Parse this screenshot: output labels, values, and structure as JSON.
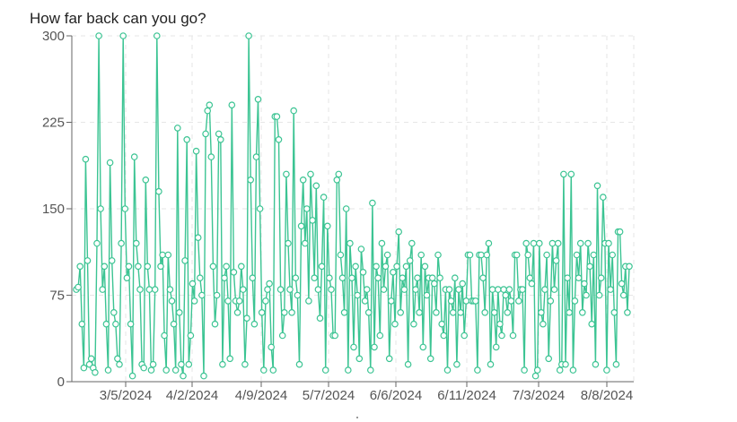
{
  "chart_data": {
    "type": "line",
    "title": "How far back can you go?",
    "xlabel": "",
    "ylabel": "",
    "ylim": [
      0,
      300
    ],
    "yticks": [
      0,
      75,
      150,
      225,
      300
    ],
    "xtick_labels": [
      "3/5/2024",
      "4/2/2024",
      "4/9/2024",
      "5/7/2024",
      "6/6/2024",
      "6/11/2024",
      "7/3/2024",
      "8/8/2024"
    ],
    "grid": true,
    "legend": "none",
    "series": [
      {
        "color": "#3cc493",
        "values": [
          80,
          82,
          100,
          50,
          12,
          193,
          105,
          15,
          20,
          12,
          8,
          120,
          300,
          150,
          80,
          100,
          50,
          10,
          190,
          105,
          60,
          50,
          20,
          15,
          120,
          300,
          150,
          90,
          100,
          50,
          5,
          195,
          120,
          100,
          80,
          15,
          12,
          175,
          100,
          80,
          10,
          15,
          80,
          300,
          165,
          100,
          110,
          40,
          10,
          110,
          80,
          70,
          50,
          10,
          220,
          60,
          15,
          5,
          105,
          210,
          15,
          40,
          85,
          70,
          200,
          125,
          90,
          75,
          5,
          215,
          235,
          240,
          195,
          100,
          50,
          75,
          215,
          210,
          15,
          90,
          100,
          70,
          20,
          240,
          95,
          70,
          60,
          70,
          100,
          80,
          15,
          55,
          300,
          175,
          90,
          50,
          195,
          245,
          150,
          60,
          10,
          70,
          80,
          85,
          30,
          10,
          230,
          230,
          210,
          80,
          40,
          60,
          180,
          120,
          80,
          60,
          235,
          90,
          75,
          15,
          135,
          175,
          120,
          150,
          70,
          180,
          140,
          90,
          170,
          80,
          55,
          100,
          160,
          10,
          135,
          90,
          80,
          40,
          40,
          175,
          180,
          110,
          90,
          60,
          150,
          10,
          120,
          90,
          30,
          100,
          75,
          20,
          115,
          95,
          70,
          80,
          60,
          10,
          155,
          30,
          100,
          90,
          40,
          120,
          80,
          100,
          110,
          20,
          70,
          95,
          50,
          100,
          130,
          60,
          90,
          80,
          100,
          15,
          105,
          120,
          50,
          80,
          90,
          60,
          110,
          30,
          100,
          75,
          90,
          20,
          90,
          85,
          60,
          110,
          90,
          50,
          40,
          80,
          10,
          80,
          70,
          60,
          90,
          15,
          80,
          60,
          85,
          40,
          70,
          110,
          110,
          70,
          70,
          70,
          10,
          110,
          110,
          90,
          60,
          110,
          120,
          15,
          80,
          60,
          30,
          80,
          50,
          40,
          80,
          75,
          60,
          80,
          70,
          40,
          110,
          110,
          70,
          80,
          80,
          10,
          120,
          110,
          90,
          85,
          120,
          5,
          10,
          120,
          60,
          50,
          80,
          110,
          20,
          70,
          120,
          80,
          105,
          120,
          10,
          15,
          180,
          15,
          90,
          60,
          180,
          10,
          70,
          110,
          90,
          120,
          60,
          85,
          75,
          120,
          100,
          50,
          110,
          15,
          170,
          75,
          90,
          160,
          120,
          10,
          120,
          80,
          110,
          60,
          15,
          130,
          130,
          85,
          75,
          100,
          60,
          100
        ]
      }
    ]
  }
}
